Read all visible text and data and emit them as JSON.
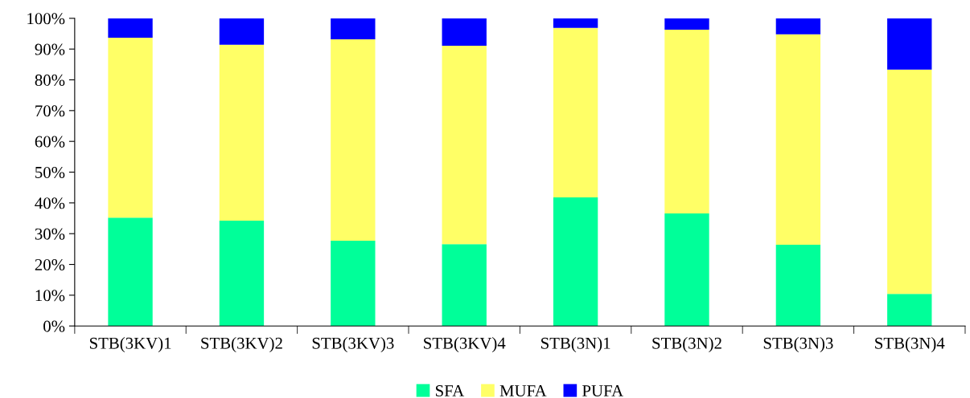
{
  "chart_data": {
    "type": "bar",
    "stacked": true,
    "categories": [
      "STB(3KV)1",
      "STB(3KV)2",
      "STB(3KV)3",
      "STB(3KV)4",
      "STB(3N)1",
      "STB(3N)2",
      "STB(3N)3",
      "STB(3N)4"
    ],
    "series": [
      {
        "name": "SFA",
        "color": "#00ff99",
        "values": [
          35.2,
          34.2,
          27.7,
          26.6,
          41.8,
          36.6,
          26.4,
          10.4
        ]
      },
      {
        "name": "MUFA",
        "color": "#ffff66",
        "values": [
          58.5,
          57.2,
          65.5,
          64.5,
          55.1,
          59.7,
          68.4,
          72.9
        ]
      },
      {
        "name": "PUFA",
        "color": "#0000ff",
        "values": [
          6.3,
          8.6,
          6.8,
          8.9,
          3.1,
          3.7,
          5.2,
          16.7
        ]
      }
    ],
    "ylim": [
      0,
      100
    ],
    "yticks": [
      {
        "value": 0,
        "label": "0%"
      },
      {
        "value": 10,
        "label": "10%"
      },
      {
        "value": 20,
        "label": "20%"
      },
      {
        "value": 30,
        "label": "30%"
      },
      {
        "value": 40,
        "label": "40%"
      },
      {
        "value": 50,
        "label": "50%"
      },
      {
        "value": 60,
        "label": "60%"
      },
      {
        "value": 70,
        "label": "70%"
      },
      {
        "value": 80,
        "label": "80%"
      },
      {
        "value": 90,
        "label": "90%"
      },
      {
        "value": 100,
        "label": "100%"
      }
    ],
    "grid": false,
    "legend": "bottom"
  }
}
